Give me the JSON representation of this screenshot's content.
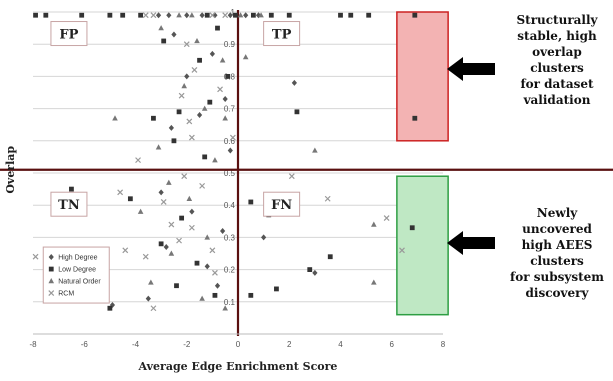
{
  "chart_data": {
    "type": "scatter",
    "xlabel": "Average Edge Enrichment Score",
    "ylabel": "Overlap",
    "xlim": [
      -8,
      8
    ],
    "ylim": [
      0,
      1
    ],
    "x_ticks": [
      "-8",
      "-6",
      "-4",
      "-2",
      "0",
      "2",
      "4",
      "6",
      "8"
    ],
    "y_ticks": [
      "0.1",
      "0.2",
      "0.3",
      "0.4",
      "0.5",
      "0.6",
      "0.7",
      "0.8",
      "0.9",
      "1"
    ],
    "grid": "horizontal",
    "quadrant_divider": {
      "x": 0,
      "y": 0.51
    },
    "quadrant_labels": [
      {
        "label": "FP",
        "x": -7.3,
        "y": 0.93
      },
      {
        "label": "TP",
        "x": 1.0,
        "y": 0.93
      },
      {
        "label": "TN",
        "x": -7.3,
        "y": 0.4
      },
      {
        "label": "FN",
        "x": 1.0,
        "y": 0.4
      }
    ],
    "highlight_regions": [
      {
        "name": "tp-region",
        "x": [
          6.2,
          8.2
        ],
        "y": [
          0.6,
          1.0
        ],
        "color": "#f3b3b3",
        "border": "#cc2222"
      },
      {
        "name": "fn-region",
        "x": [
          6.2,
          8.2
        ],
        "y": [
          0.06,
          0.49
        ],
        "color": "#bfe8c4",
        "border": "#2e9e43"
      }
    ],
    "legend": {
      "position": "bottom-left",
      "entries": [
        "High Degree",
        "Low Degree",
        "Natural Order",
        "RCM"
      ]
    },
    "series": [
      {
        "name": "High Degree",
        "color": "#555555",
        "marker": "diamond",
        "points": [
          [
            -3.1,
            0.99
          ],
          [
            -2.7,
            0.99
          ],
          [
            -2.0,
            0.99
          ],
          [
            -1.4,
            0.99
          ],
          [
            -0.9,
            0.99
          ],
          [
            -0.3,
            0.99
          ],
          [
            0.3,
            0.99
          ],
          [
            0.8,
            0.99
          ],
          [
            -2.5,
            0.93
          ],
          [
            -1.0,
            0.87
          ],
          [
            -2.0,
            0.8
          ],
          [
            -0.5,
            0.73
          ],
          [
            -1.5,
            0.68
          ],
          [
            -2.6,
            0.64
          ],
          [
            -0.3,
            0.57
          ],
          [
            -3.0,
            0.44
          ],
          [
            -1.8,
            0.38
          ],
          [
            -0.6,
            0.32
          ],
          [
            -2.8,
            0.27
          ],
          [
            -1.2,
            0.21
          ],
          [
            -0.8,
            0.15
          ],
          [
            -3.5,
            0.11
          ],
          [
            -4.9,
            0.09
          ],
          [
            -6.5,
            0.22
          ],
          [
            1.0,
            0.3
          ],
          [
            3.0,
            0.19
          ],
          [
            2.2,
            0.78
          ]
        ]
      },
      {
        "name": "Low Degree",
        "color": "#333333",
        "marker": "square",
        "points": [
          [
            -7.9,
            0.99
          ],
          [
            -7.5,
            0.99
          ],
          [
            -6.1,
            0.99
          ],
          [
            -5.0,
            0.99
          ],
          [
            -4.5,
            0.99
          ],
          [
            -3.8,
            0.99
          ],
          [
            -1.2,
            0.99
          ],
          [
            -0.1,
            0.99
          ],
          [
            0.6,
            0.99
          ],
          [
            1.3,
            0.99
          ],
          [
            2.0,
            0.99
          ],
          [
            4.0,
            0.99
          ],
          [
            4.4,
            0.99
          ],
          [
            5.1,
            0.99
          ],
          [
            6.9,
            0.99
          ],
          [
            -2.9,
            0.91
          ],
          [
            -0.8,
            0.95
          ],
          [
            -1.5,
            0.85
          ],
          [
            -0.4,
            0.8
          ],
          [
            -1.1,
            0.72
          ],
          [
            -2.3,
            0.69
          ],
          [
            -3.3,
            0.67
          ],
          [
            2.3,
            0.69
          ],
          [
            6.9,
            0.67
          ],
          [
            -2.5,
            0.6
          ],
          [
            -1.3,
            0.55
          ],
          [
            -4.2,
            0.42
          ],
          [
            -2.2,
            0.36
          ],
          [
            -3.0,
            0.28
          ],
          [
            -1.6,
            0.22
          ],
          [
            -2.4,
            0.15
          ],
          [
            -0.9,
            0.12
          ],
          [
            -5.0,
            0.08
          ],
          [
            -6.5,
            0.45
          ],
          [
            0.5,
            0.41
          ],
          [
            1.2,
            0.37
          ],
          [
            3.6,
            0.24
          ],
          [
            2.8,
            0.2
          ],
          [
            1.5,
            0.14
          ],
          [
            0.5,
            0.12
          ],
          [
            6.8,
            0.33
          ]
        ]
      },
      {
        "name": "Natural Order",
        "color": "#777777",
        "marker": "triangle",
        "points": [
          [
            -2.3,
            0.99
          ],
          [
            -1.8,
            0.99
          ],
          [
            0.1,
            0.99
          ],
          [
            0.9,
            0.99
          ],
          [
            -3.0,
            0.95
          ],
          [
            -1.6,
            0.91
          ],
          [
            -0.6,
            0.85
          ],
          [
            -2.1,
            0.77
          ],
          [
            -1.3,
            0.7
          ],
          [
            -4.8,
            0.67
          ],
          [
            -0.5,
            0.67
          ],
          [
            -3.1,
            0.58
          ],
          [
            -0.9,
            0.54
          ],
          [
            -2.7,
            0.47
          ],
          [
            -1.9,
            0.42
          ],
          [
            -3.8,
            0.38
          ],
          [
            -1.2,
            0.3
          ],
          [
            -2.6,
            0.25
          ],
          [
            -5.4,
            0.19
          ],
          [
            -3.4,
            0.16
          ],
          [
            -1.4,
            0.11
          ],
          [
            -0.5,
            0.08
          ],
          [
            0.3,
            0.86
          ],
          [
            5.3,
            0.34
          ],
          [
            5.3,
            0.16
          ],
          [
            3.0,
            0.57
          ]
        ]
      },
      {
        "name": "RCM",
        "color": "#999999",
        "marker": "x",
        "points": [
          [
            -3.6,
            0.99
          ],
          [
            -3.3,
            0.99
          ],
          [
            -1.0,
            0.99
          ],
          [
            -0.5,
            0.99
          ],
          [
            -2.0,
            0.9
          ],
          [
            -1.7,
            0.82
          ],
          [
            -0.7,
            0.76
          ],
          [
            -2.2,
            0.74
          ],
          [
            -1.9,
            0.66
          ],
          [
            -0.2,
            0.61
          ],
          [
            -3.9,
            0.54
          ],
          [
            -2.1,
            0.49
          ],
          [
            -4.6,
            0.44
          ],
          [
            -1.4,
            0.46
          ],
          [
            -2.9,
            0.41
          ],
          [
            -1.8,
            0.33
          ],
          [
            -4.4,
            0.26
          ],
          [
            -2.3,
            0.29
          ],
          [
            -3.6,
            0.24
          ],
          [
            -1.0,
            0.26
          ],
          [
            -0.9,
            0.19
          ],
          [
            -3.3,
            0.08
          ],
          [
            -7.9,
            0.24
          ],
          [
            -2.6,
            0.34
          ],
          [
            2.1,
            0.49
          ],
          [
            3.5,
            0.42
          ],
          [
            5.8,
            0.36
          ],
          [
            6.4,
            0.26
          ],
          [
            -1.8,
            0.61
          ]
        ]
      }
    ]
  },
  "annotations": [
    {
      "id": "tp-note",
      "lines": [
        "Structurally",
        "stable, high",
        "overlap",
        "clusters",
        "for dataset",
        "validation"
      ]
    },
    {
      "id": "fn-note",
      "lines": [
        "Newly",
        "uncovered",
        "high AEES",
        "clusters",
        "for subsystem",
        "discovery"
      ]
    }
  ]
}
